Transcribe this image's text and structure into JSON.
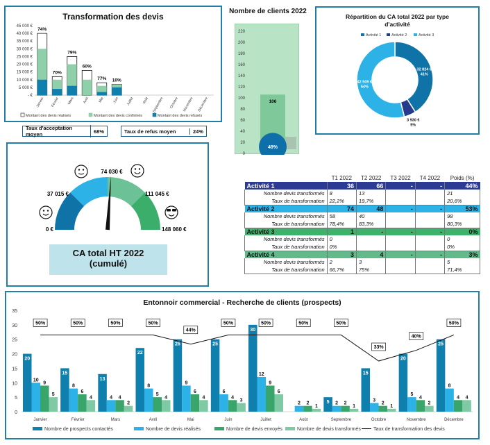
{
  "transformation": {
    "title": "Transformation des devis",
    "months": [
      "Janvier",
      "Février",
      "Mars",
      "Avril",
      "Mai",
      "Juin",
      "Juillet",
      "Août",
      "Septembre",
      "Octobre",
      "Novembre",
      "Décembre"
    ],
    "yticks": [
      "45 000 €",
      "40 000 €",
      "35 000 €",
      "30 000 €",
      "25 000 €",
      "20 000 €",
      "15 000 €",
      "10 000 €",
      "5 000 €",
      "- €"
    ],
    "realises": [
      40000,
      12000,
      25000,
      16000,
      8000,
      7000,
      0,
      0,
      0,
      0,
      0,
      0
    ],
    "confirmes": [
      20000,
      6000,
      14000,
      10000,
      4000,
      2000,
      0,
      0,
      0,
      0,
      0,
      0
    ],
    "refuses": [
      10000,
      4000,
      6000,
      0,
      2000,
      5000,
      0,
      0,
      0,
      0,
      0,
      0
    ],
    "pct_labels": [
      "74%",
      "70%",
      "79%",
      "60%",
      "77%",
      "10%",
      "",
      "",
      "",
      "",
      "",
      ""
    ],
    "legend": [
      "Montant des devis réalisés",
      "Montant des devis confirmés",
      "Montant des devis refusés"
    ],
    "colors": {
      "realises": "#ffffff",
      "confirmes": "#8fcfaa",
      "refuses": "#0f7fae"
    }
  },
  "kpis": {
    "accept_label": "Taux d'acceptation moyen",
    "accept_value": "68%",
    "refus_label": "Taux de refus moyen",
    "refus_value": "24%"
  },
  "clients": {
    "title": "Nombre de clients 2022",
    "yticks": [
      "220",
      "200",
      "180",
      "160",
      "140",
      "120",
      "100",
      "80",
      "60",
      "40",
      "20",
      "0"
    ],
    "value": 106,
    "value_label": "106",
    "pct_label": "49%"
  },
  "repartition": {
    "title_line1": "Répartition du CA total 2022 par type",
    "title_line2": "d'activité",
    "legend": [
      "Activité 1",
      "Activité 2",
      "Activité 3"
    ],
    "values": [
      41,
      5,
      54
    ],
    "colors": [
      "#0f73a8",
      "#263b8c",
      "#2db2e8"
    ],
    "labels": [
      {
        "amount": "32 824 €",
        "pct": "41%"
      },
      {
        "amount": "3 930 €",
        "pct": "5%"
      },
      {
        "amount": "42 509 €",
        "pct": "54%"
      }
    ]
  },
  "gauge": {
    "label_left": "0 €",
    "label_q1": "37 015 €",
    "label_mid": "74 030 €",
    "label_q3": "111 045 €",
    "label_right": "148 060 €",
    "value_fraction": 0.52,
    "caption_line1": "CA total HT 2022",
    "caption_line2": "(cumulé)"
  },
  "activites": {
    "headers": [
      "T1 2022",
      "T2 2022",
      "T3 2022",
      "T4 2022",
      "Poids (%)"
    ],
    "rows": [
      {
        "name": "Activité 1",
        "color": "#2b3b94",
        "text": "#fff",
        "vals": [
          "36",
          "66",
          "-",
          "-",
          "44%"
        ],
        "sub1": {
          "label": "Nombre devis transformés",
          "vals": [
            "8",
            "13",
            "",
            "",
            "21"
          ]
        },
        "sub2": {
          "label": "Taux de transformation",
          "vals": [
            "22,2%",
            "19,7%",
            "",
            "",
            "20,6%"
          ]
        }
      },
      {
        "name": "Activité 2",
        "color": "#2db2e8",
        "text": "#111",
        "vals": [
          "74",
          "48",
          "-",
          "-",
          "53%"
        ],
        "sub1": {
          "label": "Nombre devis transformés",
          "vals": [
            "58",
            "40",
            "",
            "",
            "98"
          ]
        },
        "sub2": {
          "label": "Taux de transformation",
          "vals": [
            "78,4%",
            "83,3%",
            "",
            "",
            "80,3%"
          ]
        }
      },
      {
        "name": "Activité 3",
        "color": "#3db26a",
        "text": "#111",
        "vals": [
          "1",
          "-",
          "-",
          "-",
          "0%"
        ],
        "sub1": {
          "label": "Nombre devis transformés",
          "vals": [
            "0",
            "",
            "",
            "",
            "0"
          ]
        },
        "sub2": {
          "label": "Taux de transformation",
          "vals": [
            "0%",
            "",
            "",
            "",
            "0%"
          ]
        }
      },
      {
        "name": "Activité 4",
        "color": "#62b98a",
        "text": "#111",
        "vals": [
          "3",
          "4",
          "-",
          "-",
          "3%"
        ],
        "sub1": {
          "label": "Nombre devis transformés",
          "vals": [
            "2",
            "3",
            "",
            "",
            "5"
          ]
        },
        "sub2": {
          "label": "Taux de transformation",
          "vals": [
            "66,7%",
            "75%",
            "",
            "",
            "71,4%"
          ]
        }
      }
    ]
  },
  "chart_data": {
    "type": "bar",
    "title": "Entonnoir commercial - Recherche de clients (prospects)",
    "categories": [
      "Janvier",
      "Février",
      "Mars",
      "Avril",
      "Mai",
      "Juin",
      "Juillet",
      "Août",
      "Septembre",
      "Octobre",
      "Novembre",
      "Décembre"
    ],
    "ylim": [
      0,
      35
    ],
    "yticks": [
      "35",
      "30",
      "25",
      "20",
      "15",
      "10",
      "5",
      "0"
    ],
    "series": [
      {
        "name": "Nombre de prospects contactés",
        "color": "#0f7fae",
        "values": [
          20,
          15,
          13,
          22,
          25,
          25,
          30,
          0,
          5,
          15,
          20,
          25
        ]
      },
      {
        "name": "Nombre de devis réalisés",
        "color": "#2db2e8",
        "values": [
          10,
          8,
          4,
          8,
          9,
          6,
          12,
          2,
          2,
          3,
          5,
          8
        ]
      },
      {
        "name": "Nombre de devis envoyés",
        "color": "#3aa56b",
        "values": [
          9,
          6,
          4,
          5,
          6,
          4,
          9,
          2,
          2,
          2,
          4,
          4
        ]
      },
      {
        "name": "Nombre de devis transformés",
        "color": "#7fc9a4",
        "values": [
          5,
          4,
          2,
          4,
          4,
          3,
          6,
          1,
          1,
          1,
          2,
          4
        ]
      }
    ],
    "line": {
      "name": "Taux de transformation des devis",
      "labels": [
        "50%",
        "50%",
        "50%",
        "50%",
        "44%",
        "50%",
        "50%",
        "50%",
        "50%",
        "33%",
        "40%",
        "50%"
      ],
      "values": [
        50,
        50,
        50,
        50,
        44,
        50,
        50,
        50,
        50,
        33,
        40,
        50
      ]
    }
  }
}
